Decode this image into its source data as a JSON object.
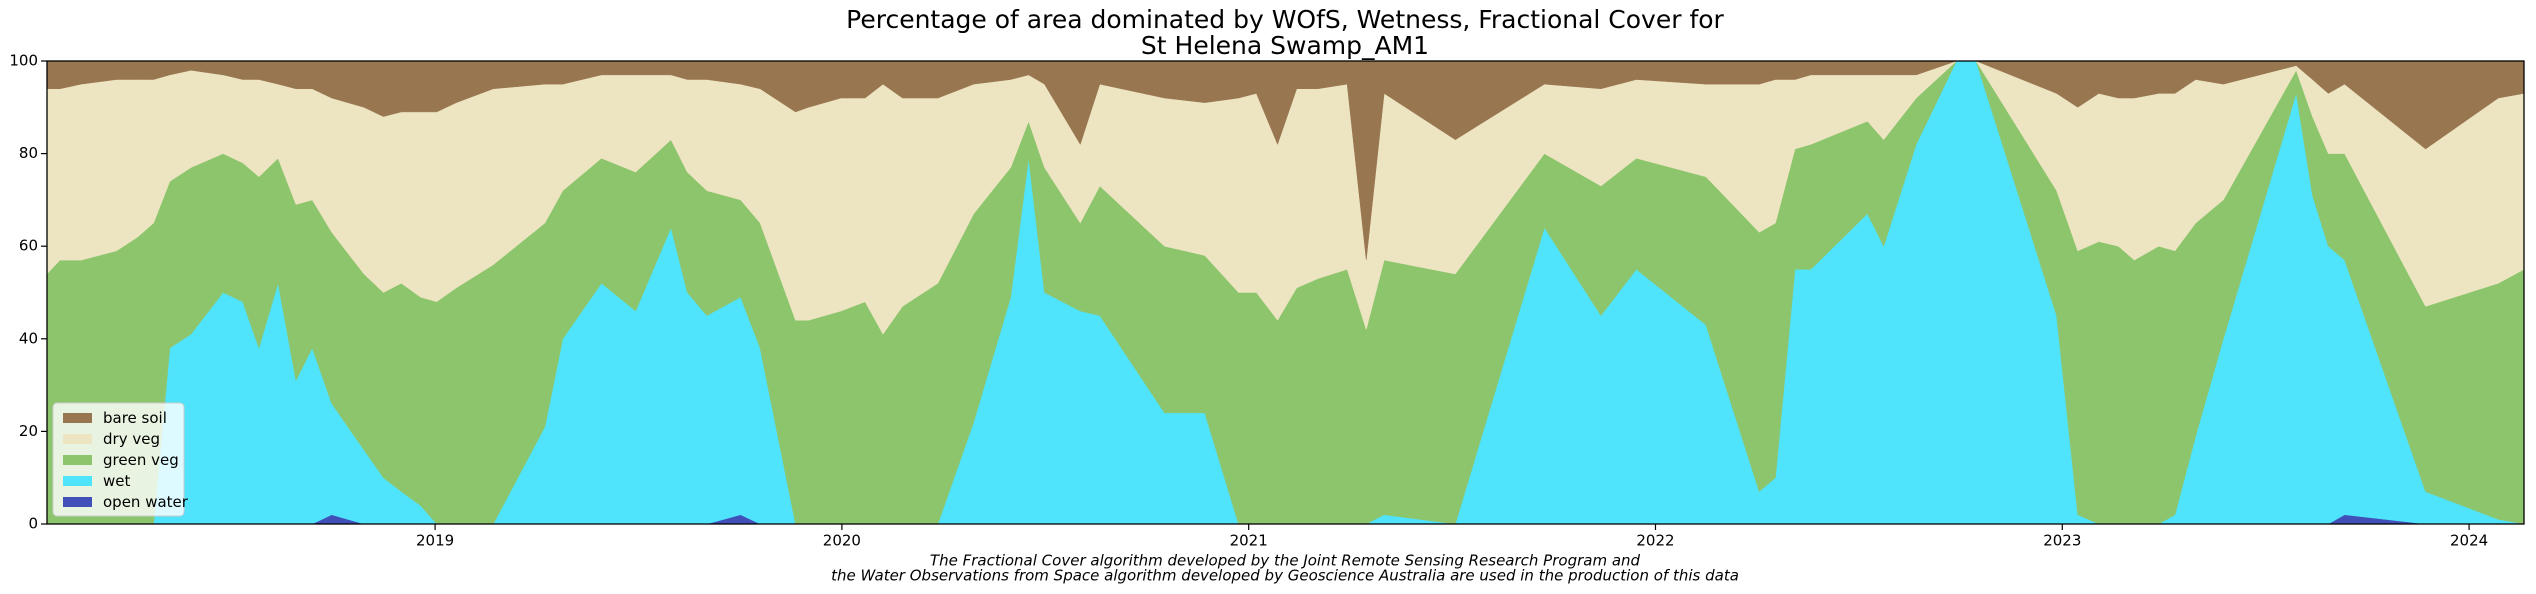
{
  "chart_data": {
    "type": "stackedarea",
    "title": [
      "Percentage of area dominated by WOfS, Wetness, Fractional Cover for",
      "St Helena Swamp_AM1"
    ],
    "caption": [
      "The Fractional Cover algorithm developed by the Joint Remote Sensing Research Program and",
      "the Water Observations from Space algorithm developed by Geoscience Australia are used in the production of this data"
    ],
    "x": [
      2018.046,
      2018.078,
      2018.13,
      2018.217,
      2018.269,
      2018.308,
      2018.348,
      2018.4,
      2018.479,
      2018.527,
      2018.567,
      2018.614,
      2018.658,
      2018.698,
      2018.746,
      2018.825,
      2018.873,
      2018.917,
      2018.964,
      2019.004,
      2019.052,
      2019.143,
      2019.27,
      2019.314,
      2019.409,
      2019.493,
      2019.58,
      2019.62,
      2019.668,
      2019.751,
      2019.799,
      2019.886,
      2019.918,
      2019.998,
      2020.057,
      2020.101,
      2020.149,
      2020.236,
      2020.324,
      2020.415,
      2020.459,
      2020.498,
      2020.586,
      2020.634,
      2020.793,
      2020.892,
      2020.975,
      2021.019,
      2021.071,
      2021.118,
      2021.17,
      2021.242,
      2021.289,
      2021.333,
      2021.508,
      2021.727,
      2021.866,
      2021.953,
      2022.124,
      2022.255,
      2022.295,
      2022.343,
      2022.382,
      2022.521,
      2022.561,
      2022.641,
      2022.74,
      2022.788,
      2022.986,
      2023.038,
      2023.09,
      2023.138,
      2023.177,
      2023.237,
      2023.277,
      2023.328,
      2023.396,
      2023.575,
      2023.615,
      2023.654,
      2023.694,
      2023.893,
      2024.072,
      2024.135
    ],
    "series": [
      {
        "name": "bare soil",
        "color": "#987650",
        "values": [
          6,
          6,
          5,
          4,
          4,
          4,
          3,
          2,
          3,
          4,
          4,
          5,
          6,
          6,
          8,
          10,
          12,
          11,
          11,
          11,
          9,
          6,
          5,
          5,
          3,
          3,
          3,
          4,
          4,
          5,
          6,
          11,
          10,
          8,
          8,
          5,
          8,
          8,
          5,
          4,
          3,
          5,
          18,
          5,
          8,
          9,
          8,
          7,
          18,
          6,
          6,
          5,
          43,
          7,
          17,
          5,
          6,
          4,
          5,
          5,
          4,
          4,
          3,
          3,
          3,
          3,
          0,
          0,
          7,
          10,
          7,
          8,
          8,
          7,
          7,
          4,
          5,
          1,
          4,
          7,
          5,
          19,
          8,
          7
        ]
      },
      {
        "name": "dry veg",
        "color": "#ede4c2",
        "values": [
          40,
          37,
          38,
          37,
          34,
          31,
          23,
          21,
          17,
          18,
          21,
          16,
          25,
          24,
          29,
          36,
          38,
          37,
          40,
          41,
          40,
          38,
          30,
          23,
          18,
          21,
          14,
          20,
          24,
          25,
          29,
          45,
          46,
          46,
          44,
          54,
          45,
          40,
          28,
          19,
          10,
          18,
          17,
          22,
          32,
          33,
          42,
          43,
          38,
          43,
          41,
          40,
          15,
          36,
          29,
          15,
          21,
          17,
          20,
          32,
          31,
          15,
          15,
          10,
          14,
          5,
          0,
          0,
          21,
          31,
          32,
          32,
          35,
          33,
          34,
          31,
          25,
          1,
          8,
          13,
          15,
          34,
          40,
          38
        ]
      },
      {
        "name": "green veg",
        "color": "#8dc56c",
        "values": [
          54,
          57,
          57,
          59,
          62,
          65,
          36,
          36,
          30,
          30,
          37,
          27,
          38,
          32,
          37,
          38,
          40,
          45,
          45,
          48,
          51,
          56,
          44,
          32,
          27,
          30,
          19,
          26,
          27,
          21,
          27,
          44,
          44,
          46,
          48,
          41,
          47,
          52,
          45,
          28,
          8,
          27,
          19,
          28,
          36,
          34,
          50,
          50,
          44,
          51,
          53,
          55,
          42,
          55,
          54,
          16,
          28,
          24,
          32,
          56,
          55,
          26,
          27,
          20,
          23,
          10,
          0,
          0,
          27,
          57,
          61,
          60,
          57,
          60,
          57,
          46,
          30,
          5,
          17,
          20,
          23,
          40,
          51,
          55
        ]
      },
      {
        "name": "wet",
        "color": "#4fe3fc",
        "values": [
          0,
          0,
          0,
          0,
          0,
          0,
          38,
          41,
          50,
          48,
          38,
          52,
          31,
          38,
          24,
          16,
          10,
          7,
          4,
          0,
          0,
          0,
          21,
          40,
          52,
          46,
          64,
          50,
          45,
          47,
          38,
          0,
          0,
          0,
          0,
          0,
          0,
          0,
          22,
          49,
          79,
          50,
          46,
          45,
          24,
          24,
          0,
          0,
          0,
          0,
          0,
          0,
          0,
          2,
          0,
          64,
          45,
          55,
          43,
          7,
          10,
          55,
          55,
          67,
          60,
          82,
          100,
          100,
          45,
          2,
          0,
          0,
          0,
          0,
          2,
          19,
          40,
          93,
          71,
          60,
          55,
          7,
          1,
          0
        ]
      },
      {
        "name": "open water",
        "color": "#4150b8",
        "values": [
          0,
          0,
          0,
          0,
          0,
          0,
          0,
          0,
          0,
          0,
          0,
          0,
          0,
          0,
          2,
          0,
          0,
          0,
          0,
          0,
          0,
          0,
          0,
          0,
          0,
          0,
          0,
          0,
          0,
          2,
          0,
          0,
          0,
          0,
          0,
          0,
          0,
          0,
          0,
          0,
          0,
          0,
          0,
          0,
          0,
          0,
          0,
          0,
          0,
          0,
          0,
          0,
          0,
          0,
          0,
          0,
          0,
          0,
          0,
          0,
          0,
          0,
          0,
          0,
          0,
          0,
          0,
          0,
          0,
          0,
          0,
          0,
          0,
          0,
          0,
          0,
          0,
          0,
          0,
          0,
          2,
          0,
          0,
          0
        ]
      }
    ],
    "xlim": [
      2018.046,
      2024.135
    ],
    "xticks": [
      2019,
      2020,
      2021,
      2022,
      2023,
      2024
    ],
    "ylim": [
      0,
      100
    ],
    "yticks": [
      0,
      20,
      40,
      60,
      80,
      100
    ],
    "legend": "lower left"
  }
}
